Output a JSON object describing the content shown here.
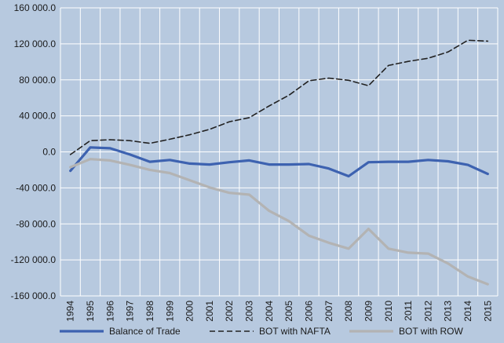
{
  "chart_data": {
    "type": "line",
    "title": "",
    "xlabel": "",
    "ylabel": "",
    "x": [
      "1994",
      "1995",
      "1996",
      "1997",
      "1998",
      "1999",
      "2000",
      "2001",
      "2002",
      "2003",
      "2004",
      "2005",
      "2006",
      "2007",
      "2008",
      "2009",
      "2010",
      "2011",
      "2012",
      "2013",
      "2014",
      "2015"
    ],
    "ylim": [
      -160000,
      160000
    ],
    "yticks": [
      160000,
      120000,
      80000,
      40000,
      0,
      -40000,
      -80000,
      -120000,
      -160000
    ],
    "ytick_labels": [
      "160 000.0",
      "120 000.0",
      "80 000.0",
      "40 000.0",
      "0.0",
      "-40 000.0",
      "-80 000.0",
      "-120 000.0",
      "-160 000.0"
    ],
    "grid": true,
    "legend_position": "bottom",
    "series": [
      {
        "name": "Balance of Trade",
        "color": "#3d62b0",
        "style": "solid",
        "values": [
          -21000,
          5000,
          4000,
          -3000,
          -11000,
          -9000,
          -13000,
          -14000,
          -11500,
          -9500,
          -14000,
          -14000,
          -13500,
          -18500,
          -27000,
          -11500,
          -11000,
          -11000,
          -9000,
          -10500,
          -14500,
          -24500
        ]
      },
      {
        "name": "BOT with NAFTA",
        "color": "#222222",
        "style": "dashed",
        "values": [
          -3000,
          12500,
          13500,
          12500,
          9500,
          14000,
          19000,
          25000,
          33500,
          38000,
          51000,
          63000,
          79000,
          82000,
          79500,
          73500,
          96000,
          100500,
          104000,
          111000,
          124000,
          123000
        ]
      },
      {
        "name": "BOT with ROW",
        "color": "#b3b3b3",
        "style": "solid",
        "values": [
          -17000,
          -8000,
          -9500,
          -14500,
          -20000,
          -23500,
          -31500,
          -39500,
          -45500,
          -47500,
          -65500,
          -77000,
          -93000,
          -101000,
          -107500,
          -85500,
          -107500,
          -112000,
          -113000,
          -124000,
          -138500,
          -147000
        ]
      }
    ]
  }
}
